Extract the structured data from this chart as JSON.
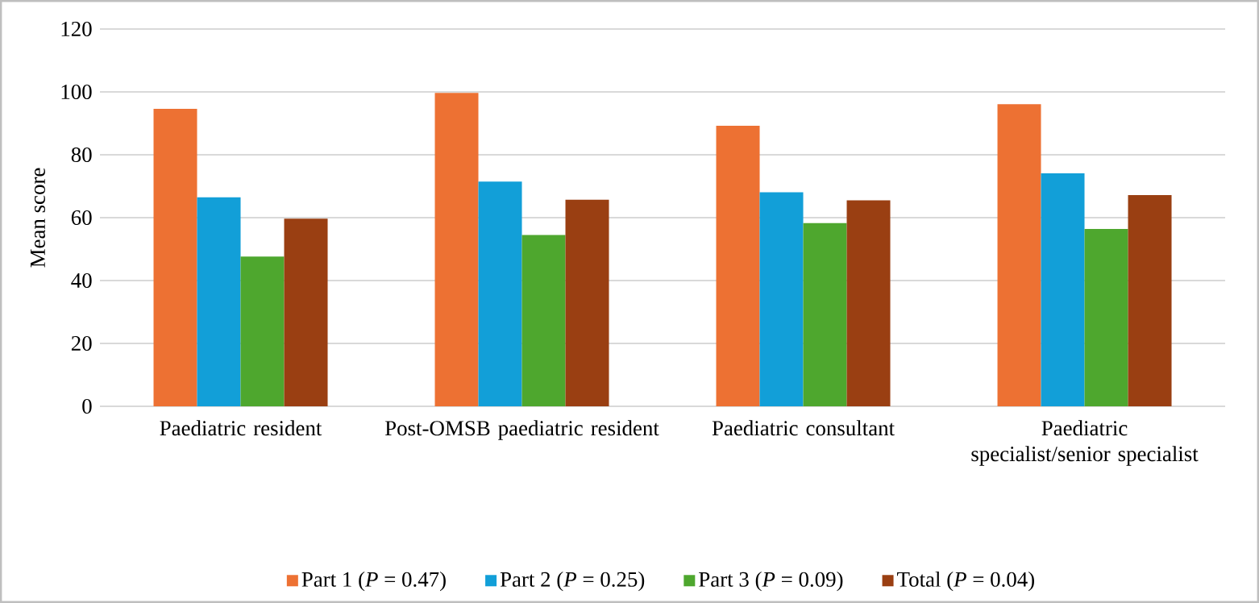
{
  "chart_data": {
    "type": "bar",
    "ylabel": "Mean score",
    "categories": [
      "Paediatric resident",
      "Post-OMSB paediatric resident",
      "Paediatric consultant",
      "Paediatric specialist/senior specialist"
    ],
    "series": [
      {
        "name": "Part 1 (*P* = 0.47)",
        "color": "#ed7133",
        "values": [
          94.6,
          99.7,
          89.2,
          96.1
        ]
      },
      {
        "name": "Part 2 (*P* = 0.25)",
        "color": "#129fd8",
        "values": [
          66.5,
          71.5,
          68.1,
          74.1
        ]
      },
      {
        "name": "Part 3 (*P* = 0.09)",
        "color": "#4ea72e",
        "values": [
          47.6,
          54.5,
          58.3,
          56.4
        ]
      },
      {
        "name": "Total (*P* = 0.04)",
        "color": "#9a3f12",
        "values": [
          59.7,
          65.7,
          65.5,
          67.2
        ]
      }
    ],
    "ylim": [
      0,
      120
    ],
    "yticks": [
      0,
      20,
      40,
      60,
      80,
      100,
      120
    ],
    "grid": "y",
    "legend": "bottom"
  }
}
